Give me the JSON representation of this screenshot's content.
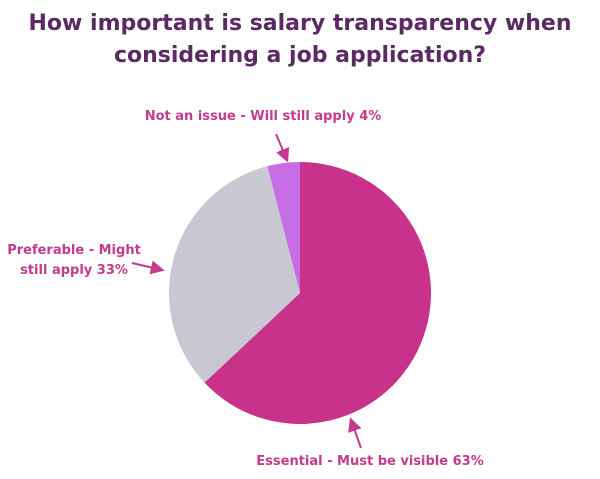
{
  "chart_data": {
    "type": "pie",
    "title_lines": [
      "How important is salary transparency when",
      "considering a job application?"
    ],
    "slices": [
      {
        "label": "Essential - Must be visible 63%",
        "value": 63,
        "color": "#c8328a"
      },
      {
        "label_lines": [
          "Preferable - Might",
          "still apply 33%"
        ],
        "value": 33,
        "color": "#c9c8d2"
      },
      {
        "label": "Not an issue - Will still apply 4%",
        "value": 4,
        "color": "#c76ee6"
      }
    ],
    "label_color": "#c43b8d",
    "title_color": "#5b2a63"
  }
}
